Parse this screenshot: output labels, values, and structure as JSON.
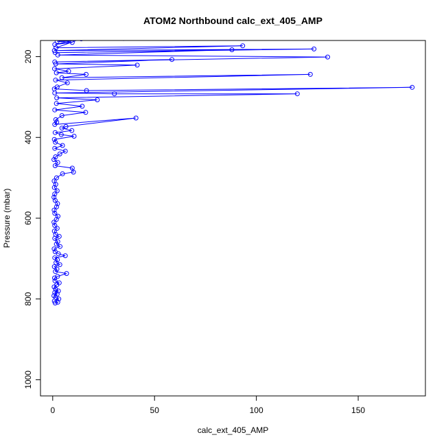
{
  "chart_data": {
    "type": "scatter",
    "title": "ATOM2 Northbound calc_ext_405_AMP",
    "xlabel": "calc_ext_405_AMP",
    "ylabel": "Pressure (mbar)",
    "xlim": [
      -6,
      183
    ],
    "ylim": [
      1040,
      160
    ],
    "y_reversed": true,
    "x_ticks": [
      0,
      50,
      100,
      150
    ],
    "y_ticks": [
      200,
      400,
      600,
      800,
      1000
    ],
    "grid": false,
    "legend": "none",
    "series": [
      {
        "color": "#0000ff",
        "marker": "open-circle",
        "connected": true,
        "points": [
          [
            1.2,
            810
          ],
          [
            2.5,
            808
          ],
          [
            0.8,
            805
          ],
          [
            3.0,
            800
          ],
          [
            1.5,
            796
          ],
          [
            0.6,
            792
          ],
          [
            2.2,
            788
          ],
          [
            1.0,
            784
          ],
          [
            2.8,
            780
          ],
          [
            1.4,
            776
          ],
          [
            0.7,
            770
          ],
          [
            2.0,
            765
          ],
          [
            3.2,
            760
          ],
          [
            1.1,
            755
          ],
          [
            0.9,
            748
          ],
          [
            2.4,
            744
          ],
          [
            6.8,
            737
          ],
          [
            1.3,
            732
          ],
          [
            2.1,
            726
          ],
          [
            0.8,
            720
          ],
          [
            3.5,
            715
          ],
          [
            1.6,
            710
          ],
          [
            2.3,
            703
          ],
          [
            1.0,
            698
          ],
          [
            6.2,
            693
          ],
          [
            2.8,
            688
          ],
          [
            1.2,
            683
          ],
          [
            0.7,
            676
          ],
          [
            3.6,
            670
          ],
          [
            1.8,
            664
          ],
          [
            2.5,
            658
          ],
          [
            1.0,
            650
          ],
          [
            3.2,
            645
          ],
          [
            1.4,
            640
          ],
          [
            0.8,
            632
          ],
          [
            2.2,
            625
          ],
          [
            1.0,
            618
          ],
          [
            0.6,
            610
          ],
          [
            1.8,
            603
          ],
          [
            2.6,
            595
          ],
          [
            1.0,
            588
          ],
          [
            0.7,
            580
          ],
          [
            1.9,
            572
          ],
          [
            2.4,
            564
          ],
          [
            1.2,
            556
          ],
          [
            0.6,
            548
          ],
          [
            1.0,
            540
          ],
          [
            2.2,
            532
          ],
          [
            0.8,
            524
          ],
          [
            1.5,
            516
          ],
          [
            0.7,
            508
          ],
          [
            1.9,
            500
          ],
          [
            4.8,
            490
          ],
          [
            10.2,
            486
          ],
          [
            9.6,
            476
          ],
          [
            1.2,
            470
          ],
          [
            2.5,
            462
          ],
          [
            0.6,
            455
          ],
          [
            1.4,
            448
          ],
          [
            3.5,
            441
          ],
          [
            6.2,
            434
          ],
          [
            1.0,
            427
          ],
          [
            4.8,
            420
          ],
          [
            1.3,
            412
          ],
          [
            0.8,
            405
          ],
          [
            10.5,
            397
          ],
          [
            4.2,
            393
          ],
          [
            1.2,
            388
          ],
          [
            9.4,
            383
          ],
          [
            4.5,
            377
          ],
          [
            6.5,
            373
          ],
          [
            40.9,
            352
          ],
          [
            1.0,
            368
          ],
          [
            2.0,
            362
          ],
          [
            1.5,
            356
          ],
          [
            4.5,
            346
          ],
          [
            16.2,
            338
          ],
          [
            1.0,
            332
          ],
          [
            14.5,
            323
          ],
          [
            1.8,
            316
          ],
          [
            21.9,
            307
          ],
          [
            2.0,
            302
          ],
          [
            120.1,
            292
          ],
          [
            30.3,
            292
          ],
          [
            1.0,
            290
          ],
          [
            176.5,
            276
          ],
          [
            16.6,
            284
          ],
          [
            0.8,
            280
          ],
          [
            2.2,
            275
          ],
          [
            7.2,
            265
          ],
          [
            1.4,
            258
          ],
          [
            126.5,
            244
          ],
          [
            4.5,
            252
          ],
          [
            16.4,
            244
          ],
          [
            1.8,
            240
          ],
          [
            7.8,
            236
          ],
          [
            0.9,
            230
          ],
          [
            41.5,
            221
          ],
          [
            1.5,
            218
          ],
          [
            58.5,
            207
          ],
          [
            1.0,
            213
          ],
          [
            135.0,
            201
          ],
          [
            2.5,
            196
          ],
          [
            88.0,
            183
          ],
          [
            1.2,
            190
          ],
          [
            128.3,
            181
          ],
          [
            0.8,
            185
          ],
          [
            93.3,
            173
          ],
          [
            1.6,
            178
          ],
          [
            14.0,
            156
          ],
          [
            1.0,
            170
          ],
          [
            9.6,
            165
          ],
          [
            2.2,
            162
          ],
          [
            34.8,
            155
          ]
        ]
      }
    ]
  }
}
